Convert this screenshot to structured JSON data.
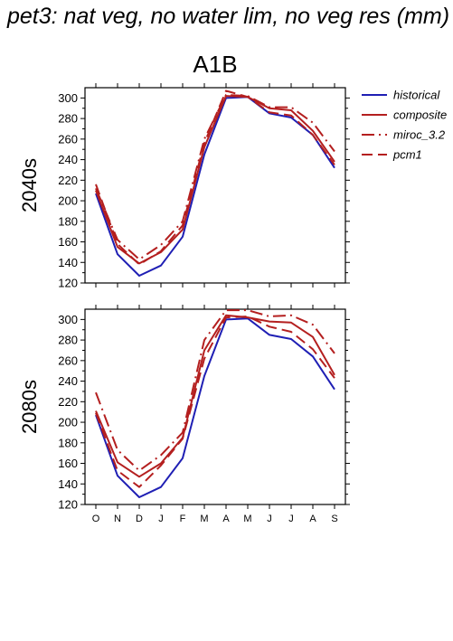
{
  "title": "pet3: nat veg, no water lim, no veg res (mm)",
  "chart_data": {
    "type": "line",
    "scenario": "A1B",
    "x": [
      "O",
      "N",
      "D",
      "J",
      "F",
      "M",
      "A",
      "M",
      "J",
      "J",
      "A",
      "S"
    ],
    "yticks": [
      120,
      140,
      160,
      180,
      200,
      220,
      240,
      260,
      280,
      300
    ],
    "ylim": [
      120,
      310
    ],
    "grid": false,
    "legend_position": "right",
    "legend": [
      {
        "name": "historical",
        "color": "#1f1fb4",
        "dash": "solid"
      },
      {
        "name": "composite",
        "color": "#b41f1f",
        "dash": "solid"
      },
      {
        "name": "miroc_3.2",
        "color": "#b41f1f",
        "dash": "dashdot"
      },
      {
        "name": "pcm1",
        "color": "#b41f1f",
        "dash": "dashed"
      }
    ],
    "panels": [
      {
        "label": "2040s",
        "series": [
          {
            "name": "historical",
            "values": [
              207,
              148,
              127,
              137,
              165,
              245,
              300,
              301,
              285,
              281,
              264,
              232
            ]
          },
          {
            "name": "composite",
            "values": [
              210,
              155,
              139,
              150,
              172,
              252,
              302,
              301,
              290,
              288,
              268,
              238
            ]
          },
          {
            "name": "miroc_3.2",
            "values": [
              212,
              162,
              143,
              157,
              180,
              260,
              303,
              302,
              291,
              291,
              276,
              248
            ]
          },
          {
            "name": "pcm1",
            "values": [
              216,
              158,
              138,
              151,
              176,
              256,
              307,
              301,
              286,
              283,
              264,
              235
            ]
          }
        ]
      },
      {
        "label": "2080s",
        "series": [
          {
            "name": "historical",
            "values": [
              207,
              148,
              127,
              137,
              165,
              245,
              300,
              301,
              285,
              281,
              264,
              232
            ]
          },
          {
            "name": "composite",
            "values": [
              211,
              161,
              147,
              160,
              185,
              270,
              304,
              302,
              298,
              297,
              283,
              246
            ]
          },
          {
            "name": "miroc_3.2",
            "values": [
              229,
              173,
              153,
              168,
              190,
              280,
              309,
              309,
              303,
              304,
              295,
              267
            ]
          },
          {
            "name": "pcm1",
            "values": [
              209,
              153,
              137,
              158,
              184,
              262,
              302,
              303,
              293,
              288,
              271,
              243
            ]
          }
        ]
      }
    ]
  }
}
